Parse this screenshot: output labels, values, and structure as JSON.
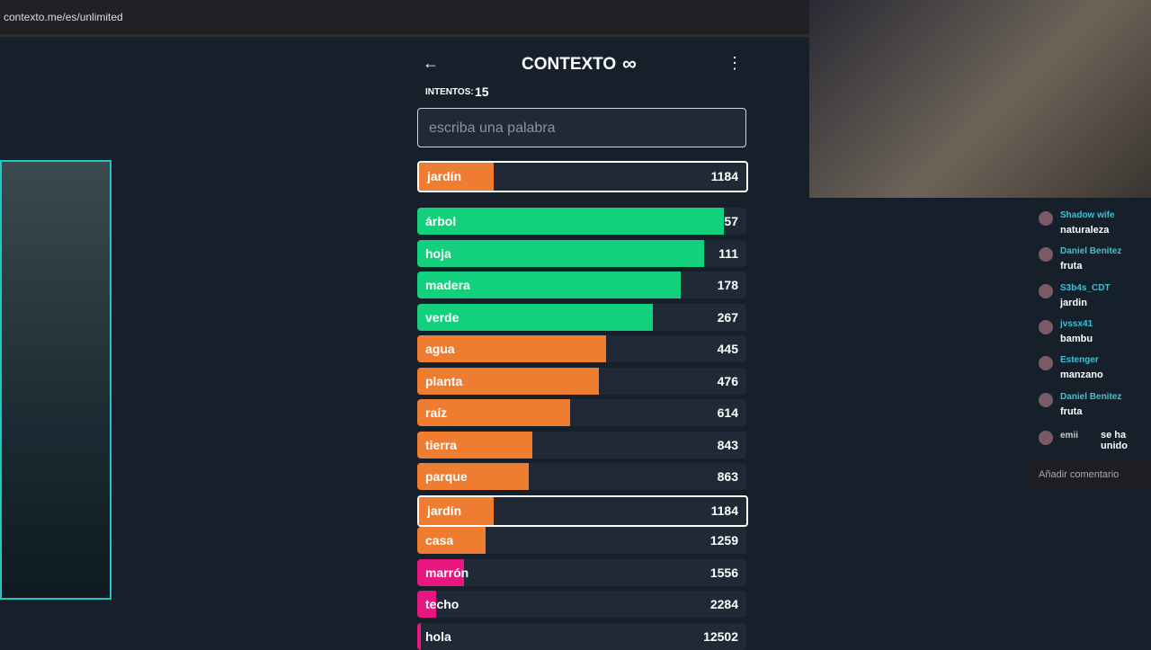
{
  "browser": {
    "url": "contexto.me/es/unlimited"
  },
  "game": {
    "title": "CONTEXTO",
    "title_icon": "∞",
    "back_icon": "←",
    "menu_icon": "⋮",
    "attempts_label": "INTENTOS:",
    "attempts": 15,
    "input_placeholder": "escriba una palabra",
    "last_guess": {
      "word": "jardín",
      "rank": 1184
    },
    "guesses": [
      {
        "word": "árbol",
        "rank": 57
      },
      {
        "word": "hoja",
        "rank": 111
      },
      {
        "word": "madera",
        "rank": 178
      },
      {
        "word": "verde",
        "rank": 267
      },
      {
        "word": "agua",
        "rank": 445
      },
      {
        "word": "planta",
        "rank": 476
      },
      {
        "word": "raíz",
        "rank": 614
      },
      {
        "word": "tierra",
        "rank": 843
      },
      {
        "word": "parque",
        "rank": 863
      },
      {
        "word": "jardín",
        "rank": 1184
      },
      {
        "word": "casa",
        "rank": 1259
      },
      {
        "word": "marrón",
        "rank": 1556
      },
      {
        "word": "techo",
        "rank": 2284
      },
      {
        "word": "hola",
        "rank": 12502
      }
    ]
  },
  "chat": {
    "messages": [
      {
        "user": "Shadow wife",
        "text": "naturaleza"
      },
      {
        "user": "Daniel Benitez",
        "text": "fruta"
      },
      {
        "user": "S3b4s_CDT",
        "text": "jardin"
      },
      {
        "user": "jvssx41",
        "text": "bambu"
      },
      {
        "user": "Estenger",
        "text": "manzano"
      },
      {
        "user": "Daniel Benitez",
        "text": "fruta"
      },
      {
        "user": "emii",
        "text": "se ha unido"
      }
    ],
    "input_placeholder": "Añadir comentario"
  }
}
